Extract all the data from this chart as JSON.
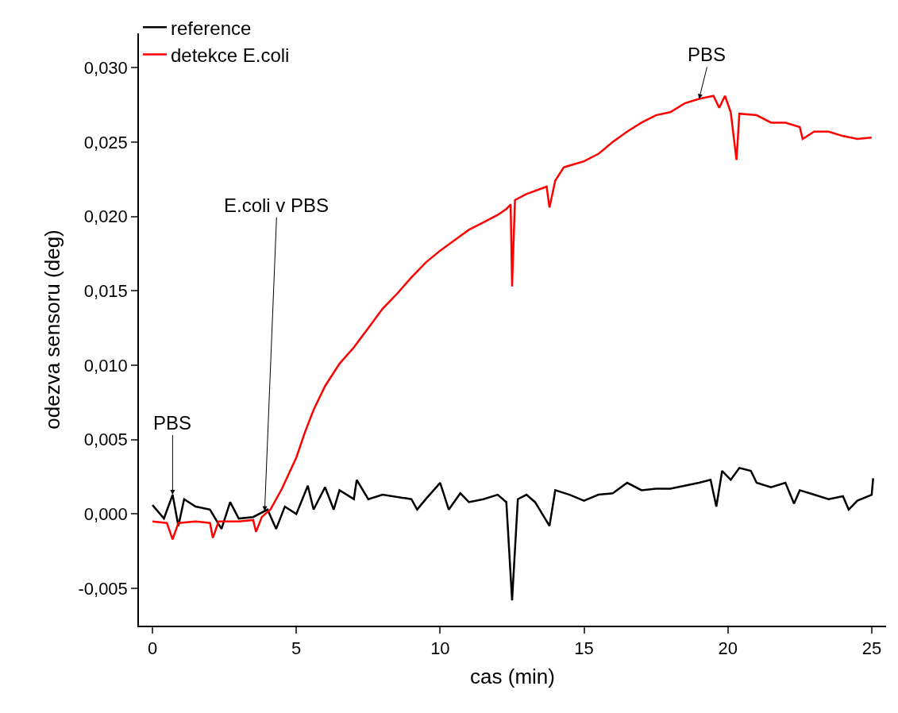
{
  "chart_data": {
    "type": "line",
    "xlabel": "cas (min)",
    "ylabel": "odezva sensoru (deg)",
    "xlim": [
      -0.47,
      25.5
    ],
    "ylim": [
      -0.0075,
      0.0323
    ],
    "xticks": [
      0,
      5,
      10,
      15,
      20,
      25
    ],
    "yticks": [
      {
        "value": -0.005,
        "label": "-0,005"
      },
      {
        "value": 0,
        "label": "0,000"
      },
      {
        "value": 0.005,
        "label": "0,005"
      },
      {
        "value": 0.01,
        "label": "0,010"
      },
      {
        "value": 0.015,
        "label": "0,015"
      },
      {
        "value": 0.02,
        "label": "0,020"
      },
      {
        "value": 0.025,
        "label": "0,025"
      },
      {
        "value": 0.03,
        "label": "0,030"
      }
    ],
    "legend": "top left",
    "marker": "none",
    "line_style": "solid",
    "series": [
      {
        "name": "reference",
        "color": "#000000",
        "x": [
          0,
          0.4,
          0.7,
          0.9,
          1.1,
          1.5,
          2.0,
          2.4,
          2.7,
          3.0,
          3.5,
          4.0,
          4.3,
          4.6,
          5.0,
          5.4,
          5.6,
          6.0,
          6.3,
          6.5,
          7.0,
          7.1,
          7.5,
          8.0,
          9.0,
          9.2,
          9.5,
          10.0,
          10.3,
          10.7,
          11.0,
          11.5,
          12.0,
          12.3,
          12.5,
          12.7,
          13.0,
          13.3,
          13.8,
          14.0,
          14.5,
          15.0,
          15.5,
          16.0,
          16.5,
          17.0,
          17.5,
          18.0,
          18.5,
          19.0,
          19.4,
          19.6,
          19.8,
          20.1,
          20.4,
          20.8,
          21.0,
          21.5,
          22.0,
          22.3,
          22.5,
          23.0,
          23.5,
          24.0,
          24.2,
          24.5,
          25.0,
          25.05
        ],
        "values": [
          0.0006,
          -0.0003,
          0.0013,
          -0.0008,
          0.001,
          0.0005,
          0.0003,
          -0.001,
          0.0008,
          -0.0003,
          -0.0002,
          0.0003,
          -0.001,
          0.0005,
          0.0,
          0.0019,
          0.0003,
          0.0018,
          0.0003,
          0.0016,
          0.001,
          0.0023,
          0.001,
          0.0013,
          0.001,
          0.0003,
          0.001,
          0.0021,
          0.0003,
          0.0014,
          0.0008,
          0.001,
          0.0013,
          0.0008,
          -0.0058,
          0.001,
          0.0013,
          0.0008,
          -0.0008,
          0.0016,
          0.0013,
          0.0009,
          0.0013,
          0.0014,
          0.0021,
          0.0016,
          0.0017,
          0.0017,
          0.0019,
          0.0021,
          0.0023,
          0.0005,
          0.0029,
          0.0023,
          0.0031,
          0.0029,
          0.0021,
          0.0018,
          0.0021,
          0.0007,
          0.0016,
          0.0013,
          0.001,
          0.0012,
          0.0003,
          0.0009,
          0.0013,
          0.0024
        ]
      },
      {
        "name": "detekce E.coli",
        "color": "#ff0000",
        "x": [
          0,
          0.5,
          0.7,
          0.9,
          1.5,
          2.0,
          2.1,
          2.3,
          3.0,
          3.5,
          3.6,
          3.8,
          4.1,
          4.5,
          5.0,
          5.3,
          5.6,
          6.0,
          6.5,
          7.0,
          7.5,
          8.0,
          8.5,
          9.0,
          9.5,
          10.0,
          10.5,
          11.0,
          11.5,
          12.0,
          12.3,
          12.45,
          12.5,
          12.6,
          13.0,
          13.7,
          13.8,
          14.0,
          14.3,
          15.0,
          15.5,
          16.0,
          16.5,
          17.0,
          17.5,
          18.0,
          18.5,
          19.0,
          19.5,
          19.7,
          19.9,
          20.1,
          20.3,
          20.4,
          21.0,
          21.5,
          22.0,
          22.5,
          22.6,
          23.0,
          23.5,
          24.0,
          24.5,
          25.0
        ],
        "values": [
          -0.0005,
          -0.0006,
          -0.0017,
          -0.0006,
          -0.0005,
          -0.0006,
          -0.0016,
          -0.0005,
          -0.0005,
          -0.0004,
          -0.0012,
          -0.0002,
          0.0003,
          0.0017,
          0.0038,
          0.0055,
          0.007,
          0.0086,
          0.0101,
          0.0112,
          0.0125,
          0.0138,
          0.0148,
          0.0159,
          0.0169,
          0.0177,
          0.0184,
          0.0191,
          0.0196,
          0.0201,
          0.0205,
          0.0208,
          0.0153,
          0.0211,
          0.0215,
          0.022,
          0.0206,
          0.0224,
          0.0233,
          0.0237,
          0.0242,
          0.025,
          0.0257,
          0.0263,
          0.0268,
          0.027,
          0.0276,
          0.0279,
          0.0281,
          0.0273,
          0.0281,
          0.027,
          0.0238,
          0.0269,
          0.0268,
          0.0263,
          0.0263,
          0.026,
          0.0252,
          0.0257,
          0.0257,
          0.0254,
          0.0252,
          0.0253
        ]
      }
    ],
    "annotations": [
      {
        "text": "PBS",
        "x": 0.7,
        "y": 0.0013
      },
      {
        "text": "E.coli v PBS",
        "x": 3.9,
        "y": 0.0002
      },
      {
        "text": "PBS",
        "x": 19.0,
        "y": 0.0279
      }
    ]
  }
}
